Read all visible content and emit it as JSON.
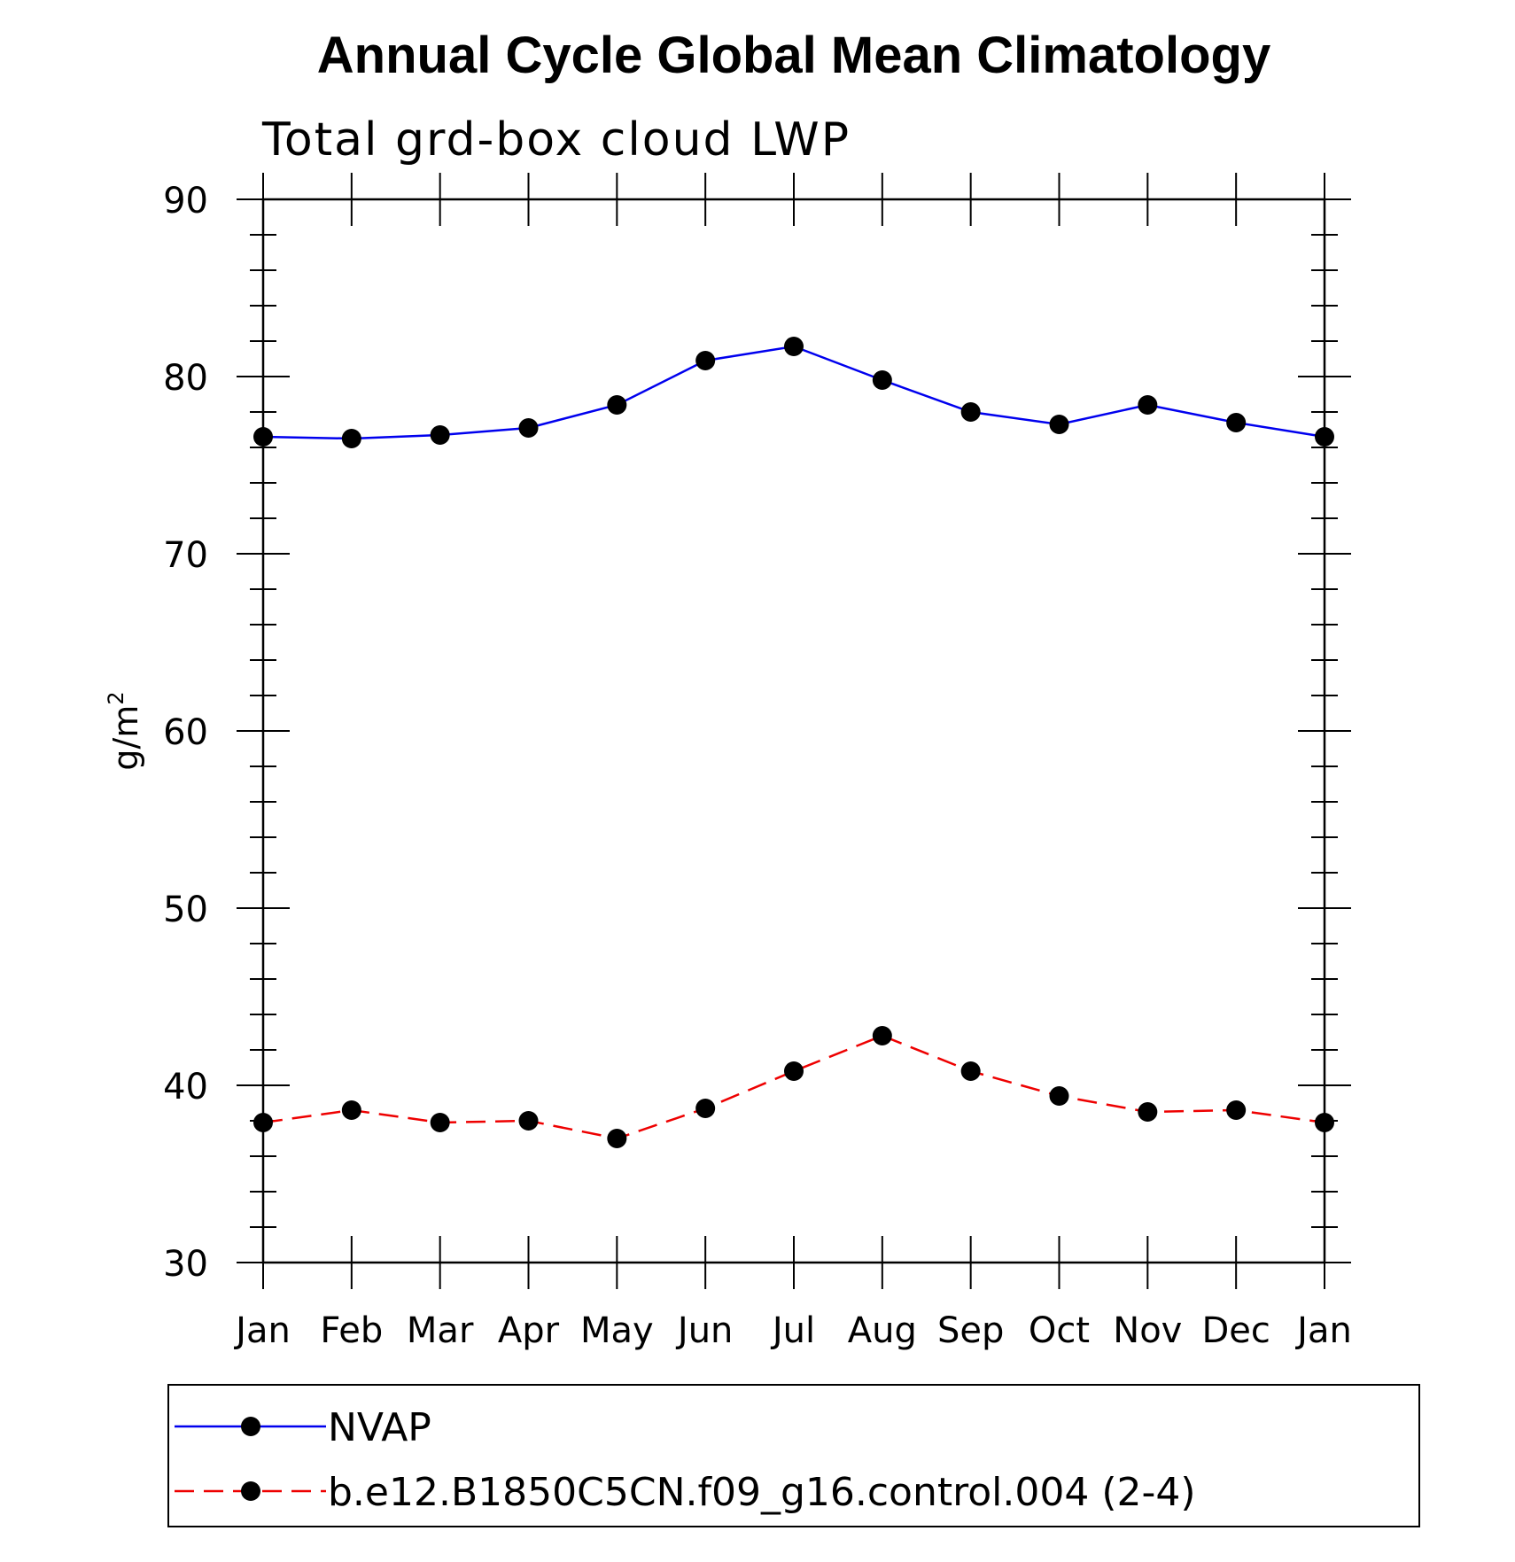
{
  "chart_data": {
    "type": "line",
    "title": "Annual Cycle Global Mean Climatology",
    "subtitle": "Total grd-box cloud LWP",
    "xlabel": "",
    "ylabel": "g/m",
    "ylabel_superscript": "2",
    "categories": [
      "Jan",
      "Feb",
      "Mar",
      "Apr",
      "May",
      "Jun",
      "Jul",
      "Aug",
      "Sep",
      "Oct",
      "Nov",
      "Dec",
      "Jan"
    ],
    "ylim": [
      30,
      90
    ],
    "yticks": [
      30,
      40,
      50,
      60,
      70,
      80,
      90
    ],
    "series": [
      {
        "name": "NVAP",
        "color": "#0000ee",
        "dash": "solid",
        "marker": "filled-circle",
        "values": [
          76.6,
          76.5,
          76.7,
          77.1,
          78.4,
          80.9,
          81.7,
          79.8,
          78.0,
          77.3,
          78.4,
          77.4,
          76.6
        ]
      },
      {
        "name": "b.e12.B1850C5CN.f09_g16.control.004 (2-4)",
        "color": "#ee0000",
        "dash": "dashed",
        "marker": "filled-circle",
        "values": [
          37.9,
          38.6,
          37.9,
          38.0,
          37.0,
          38.7,
          40.8,
          42.8,
          40.8,
          39.4,
          38.5,
          38.6,
          37.9
        ]
      }
    ],
    "grid": false,
    "legend_position": "bottom"
  }
}
